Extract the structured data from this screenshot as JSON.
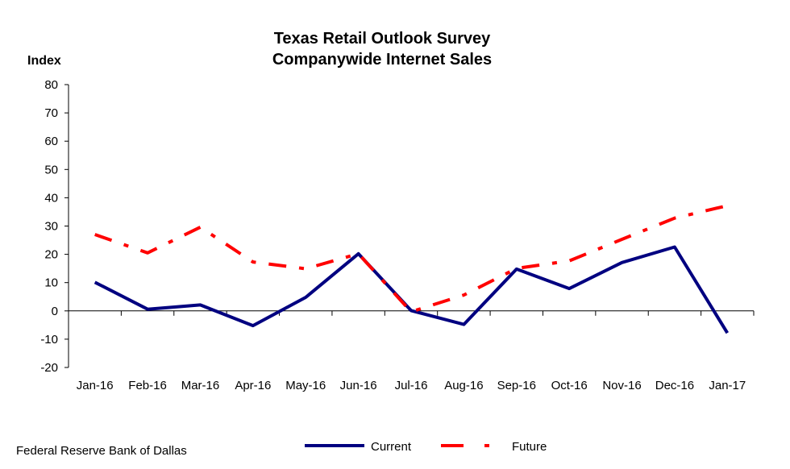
{
  "chart_data": {
    "type": "line",
    "title": "Texas Retail Outlook Survey",
    "subtitle": "Companywide Internet Sales",
    "ylabel": "Index",
    "xlabel": "",
    "ylim": [
      -20,
      80
    ],
    "yticks": [
      -20,
      -10,
      0,
      10,
      20,
      30,
      40,
      50,
      60,
      70,
      80
    ],
    "categories": [
      "Jan-16",
      "Feb-16",
      "Mar-16",
      "Apr-16",
      "May-16",
      "Jun-16",
      "Jul-16",
      "Aug-16",
      "Sep-16",
      "Oct-16",
      "Nov-16",
      "Dec-16",
      "Jan-17"
    ],
    "series": [
      {
        "name": "Current",
        "color": "#000080",
        "style": "solid",
        "values": [
          10.1,
          0.6,
          2.1,
          -5.2,
          4.8,
          20.2,
          0.1,
          -4.8,
          14.8,
          7.9,
          17.1,
          22.6,
          -7.8
        ]
      },
      {
        "name": "Future",
        "color": "#ff0000",
        "style": "dash-dot",
        "values": [
          27.0,
          20.5,
          29.6,
          17.3,
          14.9,
          20.2,
          -0.3,
          5.6,
          15.0,
          17.7,
          25.3,
          32.8,
          37.2
        ]
      }
    ],
    "grid": false,
    "legend": "bottom-center"
  },
  "footer": {
    "source": "Federal Reserve Bank of Dallas"
  }
}
